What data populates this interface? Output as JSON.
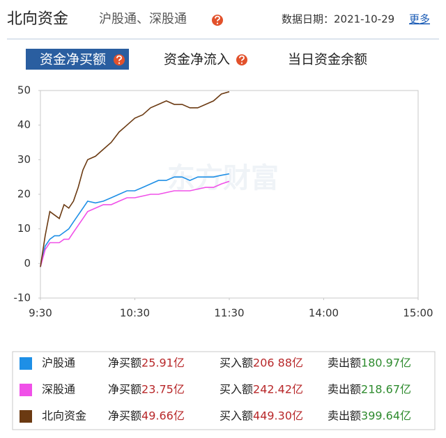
{
  "header": {
    "title": "北向资金",
    "subtitle": "沪股通、深股通",
    "date": "数据日期：2021-10-29",
    "more": "更多"
  },
  "tabs": [
    "资金净买额",
    "资金净流入",
    "当日资金余额"
  ],
  "chart_data": {
    "type": "line",
    "watermark": "东方财富",
    "x": [
      0,
      3,
      6,
      9,
      12,
      15,
      18,
      21,
      24,
      27,
      30,
      35,
      40,
      45,
      50,
      55,
      60,
      65,
      70,
      75,
      80,
      85,
      90,
      95,
      100,
      105,
      110,
      115,
      120
    ],
    "xlim": [
      0,
      240
    ],
    "xticks": [
      {
        "value": 0,
        "label": "9:30"
      },
      {
        "value": 60,
        "label": "10:30"
      },
      {
        "value": 120,
        "label": "11:30"
      },
      {
        "value": 180,
        "label": "14:00"
      },
      {
        "value": 240,
        "label": "15:00"
      }
    ],
    "ylim": [
      -10,
      50
    ],
    "yticks": [
      -10,
      0,
      10,
      20,
      30,
      40,
      50
    ],
    "series": [
      {
        "name": "沪股通",
        "color": "#1e8fe6",
        "values": [
          -1,
          5,
          7,
          8,
          8,
          9,
          10,
          12,
          14,
          16,
          18,
          17.5,
          18,
          19,
          20,
          21,
          21,
          22,
          23,
          24,
          24,
          25,
          25,
          24,
          25,
          25,
          25,
          25.5,
          25.91
        ]
      },
      {
        "name": "深股通",
        "color": "#f050e8",
        "values": [
          -1,
          4,
          6,
          6,
          6,
          7,
          7,
          9,
          11,
          13,
          15,
          16,
          17,
          17,
          18,
          19,
          19,
          19.5,
          20,
          20,
          20.5,
          21,
          21,
          21,
          21.5,
          22,
          22,
          23,
          23.75
        ]
      },
      {
        "name": "北向资金",
        "color": "#6b3a12",
        "values": [
          -1,
          8,
          15,
          14,
          13,
          17,
          16,
          18,
          22,
          27,
          30,
          31,
          33,
          35,
          38,
          40,
          42,
          43,
          45,
          46,
          47,
          46,
          46,
          45,
          45,
          46,
          47,
          49,
          49.66
        ]
      }
    ]
  },
  "summary": {
    "labels": [
      "净买额",
      "买入额",
      "卖出额"
    ],
    "rows": [
      [
        "25.91亿",
        "206 88亿",
        "180.97亿"
      ],
      [
        "23.75亿",
        "242.42亿",
        "218.67亿"
      ],
      [
        "49.66亿",
        "449.30亿",
        "399.64亿"
      ]
    ]
  }
}
